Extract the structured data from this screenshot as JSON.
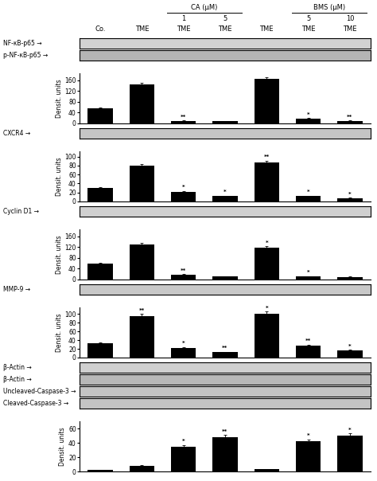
{
  "chart_data": [
    {
      "type": "bar",
      "categories": [
        "Co.",
        "TME",
        "TME",
        "TME",
        "TME",
        "TME",
        "TME"
      ],
      "groups": [
        {
          "label": "CA (μM)",
          "members": [
            2,
            3
          ],
          "member_labels": [
            "1",
            "5"
          ]
        },
        {
          "label": "BMS (μM)",
          "members": [
            5,
            6
          ],
          "member_labels": [
            "5",
            "10"
          ]
        }
      ],
      "blots": [
        {
          "label": "NF-κB-p65 →",
          "color": "#d2d2d2"
        },
        {
          "label": "p-NF-κB-p65 →",
          "color": "#b5b5b5"
        }
      ],
      "values": [
        55,
        145,
        10,
        8,
        165,
        18,
        10
      ],
      "errors": [
        3,
        5,
        2,
        1,
        4,
        2,
        2
      ],
      "significance": [
        null,
        null,
        "**",
        null,
        null,
        "*",
        "**"
      ],
      "color": "#000000",
      "ylim": [
        0,
        185
      ],
      "yticks": [
        0,
        40,
        80,
        120,
        160
      ],
      "y_label": "Densit. units",
      "tick_labels": "y"
    },
    {
      "type": "bar",
      "categories": [
        "Co.",
        "TME",
        "TME",
        "TME",
        "TME",
        "TME",
        "TME"
      ],
      "blots": [
        {
          "label": "CXCR4 →",
          "color": "#c5c5c5"
        }
      ],
      "values": [
        30,
        80,
        22,
        12,
        87,
        12,
        8
      ],
      "errors": [
        2,
        3,
        2,
        1,
        4,
        1,
        1
      ],
      "significance": [
        null,
        null,
        "*",
        "*",
        "**",
        "*",
        "*"
      ],
      "color": "#000000",
      "ylim": [
        0,
        112
      ],
      "yticks": [
        0,
        20,
        40,
        60,
        80,
        100
      ],
      "y_label": "Densit. units",
      "tick_labels": "y"
    },
    {
      "type": "bar",
      "categories": [
        "Co.",
        "TME",
        "TME",
        "TME",
        "TME",
        "TME",
        "TME"
      ],
      "blots": [
        {
          "label": "Cyclin D1 →",
          "color": "#d0d0d0"
        }
      ],
      "values": [
        60,
        130,
        18,
        12,
        118,
        12,
        10
      ],
      "errors": [
        3,
        5,
        2,
        1,
        5,
        1,
        1
      ],
      "significance": [
        null,
        null,
        "**",
        null,
        "*",
        "*",
        null
      ],
      "color": "#000000",
      "ylim": [
        0,
        185
      ],
      "yticks": [
        0,
        40,
        80,
        120,
        160
      ],
      "y_label": "Densit. units",
      "tick_labels": "y"
    },
    {
      "type": "bar",
      "categories": [
        "Co.",
        "TME",
        "TME",
        "TME",
        "TME",
        "TME",
        "TME"
      ],
      "blots": [
        {
          "label": "MMP-9 →",
          "color": "#c8c8c8"
        }
      ],
      "values": [
        32,
        95,
        22,
        12,
        100,
        28,
        16
      ],
      "errors": [
        2,
        5,
        2,
        1,
        5,
        2,
        2
      ],
      "significance": [
        null,
        "**",
        "*",
        "**",
        "*",
        "**",
        "*"
      ],
      "color": "#000000",
      "ylim": [
        0,
        115
      ],
      "yticks": [
        0,
        20,
        40,
        60,
        80,
        100
      ],
      "y_label": "Densit. units",
      "tick_labels": "y"
    },
    {
      "type": "bar",
      "categories": [
        "Co.",
        "TME",
        "TME",
        "TME",
        "TME",
        "TME",
        "TME"
      ],
      "blots": [
        {
          "label": "β-Actin →",
          "color": "#d0d0d0"
        },
        {
          "label": "β-Actin →",
          "color": "#b8b8b8"
        },
        {
          "label": "Uncleaved-Caspase-3 →",
          "color": "#c4c4c4"
        },
        {
          "label": "Cleaved-Caspase-3 →",
          "color": "#c4c4c4"
        }
      ],
      "values": [
        2,
        8,
        35,
        48,
        3,
        42,
        50
      ],
      "errors": [
        0.5,
        1,
        2,
        3,
        0.5,
        3,
        3
      ],
      "significance": [
        null,
        null,
        "*",
        "**",
        null,
        "*",
        "*"
      ],
      "color": "#000000",
      "ylim": [
        0,
        70
      ],
      "yticks": [
        0,
        20,
        40,
        60
      ],
      "y_label": "Densit. units",
      "tick_labels": "y"
    }
  ]
}
